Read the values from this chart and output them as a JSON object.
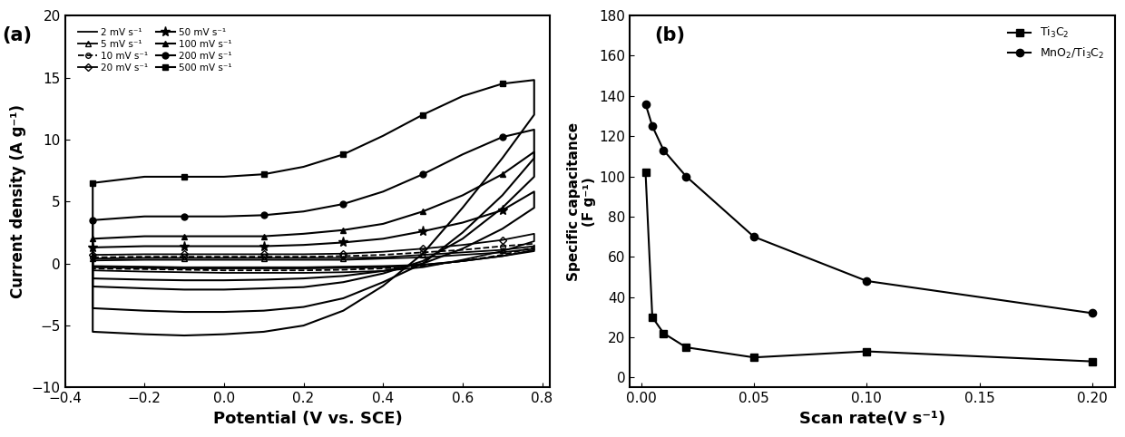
{
  "panel_a": {
    "xlabel": "Potential (V vs. SCE)",
    "ylabel": "Current density (A g⁻¹)",
    "xlim": [
      -0.35,
      0.82
    ],
    "ylim": [
      -10,
      20
    ],
    "yticks": [
      -10,
      -5,
      0,
      5,
      10,
      15,
      20
    ],
    "xticks": [
      -0.4,
      -0.2,
      0.0,
      0.2,
      0.4,
      0.6,
      0.8
    ],
    "label": "(a)",
    "curves": [
      {
        "label": "2 mV s⁻¹",
        "marker": null,
        "linestyle": "-",
        "lw": 1.3,
        "ms": 0,
        "filled": true,
        "anodic_x": [
          -0.33,
          -0.2,
          -0.1,
          0.0,
          0.1,
          0.2,
          0.3,
          0.4,
          0.5,
          0.6,
          0.7,
          0.78
        ],
        "anodic_y": [
          0.25,
          0.3,
          0.3,
          0.3,
          0.3,
          0.3,
          0.3,
          0.4,
          0.5,
          0.7,
          0.9,
          1.2
        ],
        "cathodic_x": [
          0.78,
          0.7,
          0.6,
          0.5,
          0.4,
          0.3,
          0.2,
          0.1,
          0.0,
          -0.1,
          -0.2,
          -0.33
        ],
        "cathodic_y": [
          1.0,
          0.6,
          0.2,
          -0.1,
          -0.2,
          -0.25,
          -0.3,
          -0.3,
          -0.3,
          -0.3,
          -0.25,
          -0.2
        ]
      },
      {
        "label": "5 mV s⁻¹",
        "marker": "^",
        "linestyle": "-",
        "lw": 1.3,
        "ms": 4,
        "filled": false,
        "anodic_x": [
          -0.33,
          -0.2,
          -0.1,
          0.0,
          0.1,
          0.2,
          0.3,
          0.4,
          0.5,
          0.6,
          0.7,
          0.78
        ],
        "anodic_y": [
          0.4,
          0.45,
          0.45,
          0.45,
          0.45,
          0.45,
          0.45,
          0.5,
          0.7,
          0.9,
          1.1,
          1.4
        ],
        "cathodic_x": [
          0.78,
          0.7,
          0.6,
          0.5,
          0.4,
          0.3,
          0.2,
          0.1,
          0.0,
          -0.1,
          -0.2,
          -0.33
        ],
        "cathodic_y": [
          1.1,
          0.6,
          0.2,
          -0.1,
          -0.3,
          -0.35,
          -0.4,
          -0.4,
          -0.4,
          -0.4,
          -0.35,
          -0.3
        ]
      },
      {
        "label": "10 mV s⁻¹",
        "marker": "o",
        "linestyle": "--",
        "lw": 1.3,
        "ms": 4,
        "filled": false,
        "anodic_x": [
          -0.33,
          -0.2,
          -0.1,
          0.0,
          0.1,
          0.2,
          0.3,
          0.4,
          0.5,
          0.6,
          0.7,
          0.78
        ],
        "anodic_y": [
          0.5,
          0.55,
          0.55,
          0.55,
          0.55,
          0.55,
          0.6,
          0.7,
          0.9,
          1.1,
          1.4,
          1.6
        ],
        "cathodic_x": [
          0.78,
          0.7,
          0.6,
          0.5,
          0.4,
          0.3,
          0.2,
          0.1,
          0.0,
          -0.1,
          -0.2,
          -0.33
        ],
        "cathodic_y": [
          1.3,
          0.7,
          0.2,
          -0.2,
          -0.4,
          -0.5,
          -0.55,
          -0.55,
          -0.55,
          -0.5,
          -0.45,
          -0.4
        ]
      },
      {
        "label": "20 mV s⁻¹",
        "marker": "D",
        "linestyle": "-",
        "lw": 1.3,
        "ms": 4,
        "filled": false,
        "anodic_x": [
          -0.33,
          -0.2,
          -0.1,
          0.0,
          0.1,
          0.2,
          0.3,
          0.4,
          0.5,
          0.6,
          0.7,
          0.78
        ],
        "anodic_y": [
          0.7,
          0.75,
          0.75,
          0.75,
          0.75,
          0.75,
          0.8,
          0.95,
          1.2,
          1.5,
          1.9,
          2.4
        ],
        "cathodic_x": [
          0.78,
          0.7,
          0.6,
          0.5,
          0.4,
          0.3,
          0.2,
          0.1,
          0.0,
          -0.1,
          -0.2,
          -0.33
        ],
        "cathodic_y": [
          1.8,
          1.0,
          0.3,
          -0.3,
          -0.6,
          -0.7,
          -0.75,
          -0.75,
          -0.75,
          -0.7,
          -0.65,
          -0.55
        ]
      },
      {
        "label": "50 mV s⁻¹",
        "marker": "*",
        "linestyle": "-",
        "lw": 1.5,
        "ms": 8,
        "filled": true,
        "anodic_x": [
          -0.33,
          -0.2,
          -0.1,
          0.0,
          0.1,
          0.2,
          0.3,
          0.4,
          0.5,
          0.6,
          0.7,
          0.78
        ],
        "anodic_y": [
          1.3,
          1.4,
          1.4,
          1.4,
          1.4,
          1.5,
          1.7,
          2.0,
          2.6,
          3.3,
          4.3,
          5.8
        ],
        "cathodic_x": [
          0.78,
          0.7,
          0.6,
          0.5,
          0.4,
          0.3,
          0.2,
          0.1,
          0.0,
          -0.1,
          -0.2,
          -0.33
        ],
        "cathodic_y": [
          4.5,
          2.8,
          1.2,
          0.0,
          -0.6,
          -1.0,
          -1.2,
          -1.3,
          -1.35,
          -1.35,
          -1.3,
          -1.2
        ]
      },
      {
        "label": "100 mV s⁻¹",
        "marker": "^",
        "linestyle": "-",
        "lw": 1.5,
        "ms": 5,
        "filled": true,
        "anodic_x": [
          -0.33,
          -0.2,
          -0.1,
          0.0,
          0.1,
          0.2,
          0.3,
          0.4,
          0.5,
          0.6,
          0.7,
          0.78
        ],
        "anodic_y": [
          2.0,
          2.2,
          2.2,
          2.2,
          2.2,
          2.4,
          2.7,
          3.2,
          4.2,
          5.5,
          7.2,
          9.0
        ],
        "cathodic_x": [
          0.78,
          0.7,
          0.6,
          0.5,
          0.4,
          0.3,
          0.2,
          0.1,
          0.0,
          -0.1,
          -0.2,
          -0.33
        ],
        "cathodic_y": [
          7.0,
          4.5,
          2.0,
          0.2,
          -0.8,
          -1.5,
          -1.9,
          -2.0,
          -2.1,
          -2.1,
          -2.0,
          -1.85
        ]
      },
      {
        "label": "200 mV s⁻¹",
        "marker": "o",
        "linestyle": "-",
        "lw": 1.5,
        "ms": 5,
        "filled": true,
        "anodic_x": [
          -0.33,
          -0.2,
          -0.1,
          0.0,
          0.1,
          0.2,
          0.3,
          0.4,
          0.5,
          0.6,
          0.7,
          0.78
        ],
        "anodic_y": [
          3.5,
          3.8,
          3.8,
          3.8,
          3.9,
          4.2,
          4.8,
          5.8,
          7.2,
          8.8,
          10.2,
          10.8
        ],
        "cathodic_x": [
          0.78,
          0.7,
          0.6,
          0.5,
          0.4,
          0.3,
          0.2,
          0.1,
          0.0,
          -0.1,
          -0.2,
          -0.33
        ],
        "cathodic_y": [
          8.5,
          5.5,
          2.5,
          0.0,
          -1.5,
          -2.8,
          -3.5,
          -3.8,
          -3.9,
          -3.9,
          -3.8,
          -3.6
        ]
      },
      {
        "label": "500 mV s⁻¹",
        "marker": "s",
        "linestyle": "-",
        "lw": 1.5,
        "ms": 5,
        "filled": true,
        "anodic_x": [
          -0.33,
          -0.2,
          -0.1,
          0.0,
          0.1,
          0.2,
          0.3,
          0.4,
          0.5,
          0.6,
          0.7,
          0.78
        ],
        "anodic_y": [
          6.5,
          7.0,
          7.0,
          7.0,
          7.2,
          7.8,
          8.8,
          10.3,
          12.0,
          13.5,
          14.5,
          14.8
        ],
        "cathodic_x": [
          0.78,
          0.7,
          0.6,
          0.5,
          0.4,
          0.3,
          0.2,
          0.1,
          0.0,
          -0.1,
          -0.2,
          -0.33
        ],
        "cathodic_y": [
          12.0,
          8.5,
          4.5,
          0.8,
          -1.8,
          -3.8,
          -5.0,
          -5.5,
          -5.7,
          -5.8,
          -5.7,
          -5.5
        ]
      }
    ]
  },
  "panel_b": {
    "xlabel": "Scan rate(V s⁻¹)",
    "ylabel": "Specific capacitance (F g⁻¹)",
    "xlim": [
      -0.005,
      0.21
    ],
    "ylim": [
      -5,
      180
    ],
    "yticks": [
      0,
      20,
      40,
      60,
      80,
      100,
      120,
      140,
      160,
      180
    ],
    "xticks": [
      0.0,
      0.05,
      0.1,
      0.15,
      0.2
    ],
    "label": "(b)",
    "series": [
      {
        "label": "Ti$_3$C$_2$",
        "marker": "s",
        "x": [
          0.002,
          0.005,
          0.01,
          0.02,
          0.05,
          0.1,
          0.2
        ],
        "y": [
          102,
          30,
          22,
          15,
          10,
          13,
          8
        ]
      },
      {
        "label": "MnO$_2$/Ti$_3$C$_2$",
        "marker": "o",
        "x": [
          0.002,
          0.005,
          0.01,
          0.02,
          0.05,
          0.1,
          0.2
        ],
        "y": [
          136,
          125,
          113,
          100,
          70,
          48,
          32
        ]
      }
    ]
  }
}
